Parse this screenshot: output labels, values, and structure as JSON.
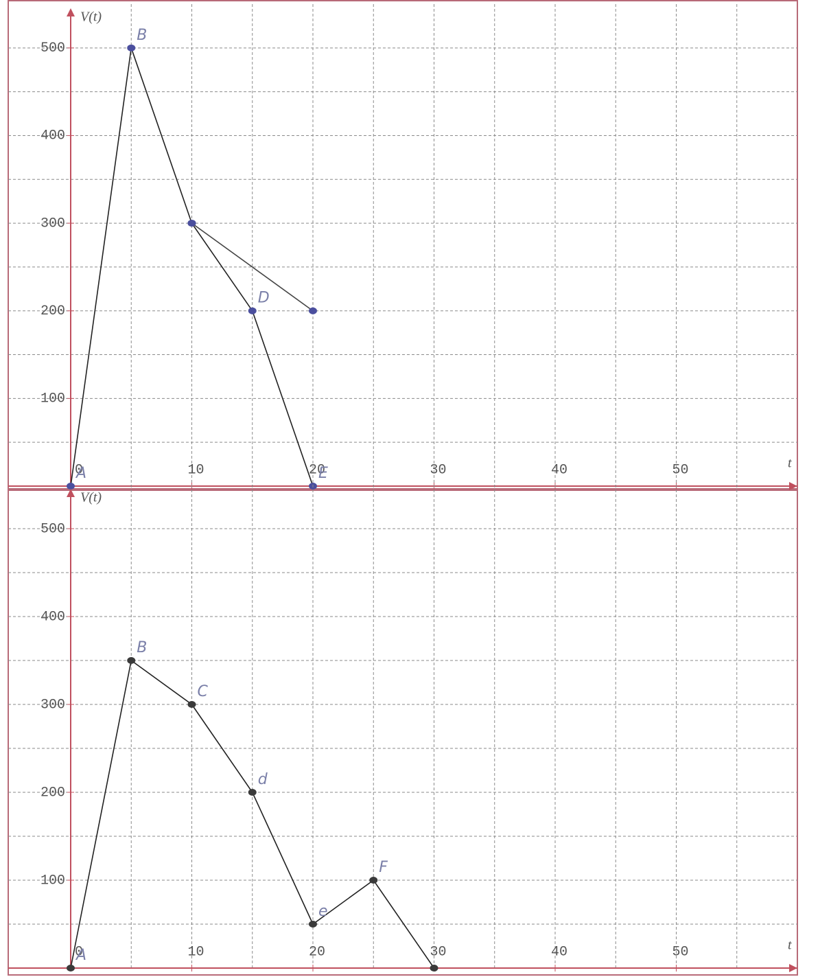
{
  "chart_data": [
    {
      "type": "line",
      "y_label": "V(t)",
      "x_label": "t",
      "xlim": [
        0,
        60
      ],
      "ylim": [
        0,
        550
      ],
      "xticks": [
        0,
        10,
        20,
        30,
        40,
        50
      ],
      "yticks": [
        100,
        200,
        300,
        400,
        500
      ],
      "xgrid": [
        5,
        10,
        15,
        20,
        25,
        30,
        35,
        40,
        45,
        50,
        55
      ],
      "ygrid": [
        50,
        100,
        150,
        200,
        250,
        300,
        350,
        400,
        450,
        500
      ],
      "grid": true,
      "series": [
        {
          "x": [
            0,
            5,
            10,
            15,
            20
          ],
          "values": [
            0,
            500,
            300,
            200,
            0
          ],
          "color": "#222222",
          "marker_color": "#4b4f9e",
          "point_labels": [
            "A",
            "B",
            null,
            "D",
            "E"
          ]
        },
        {
          "x": [
            10,
            20
          ],
          "values": [
            300,
            200
          ],
          "color": "#444444",
          "marker_color": "#4b4f9e",
          "point_labels": [
            null,
            null
          ]
        }
      ]
    },
    {
      "type": "line",
      "y_label": "V(t)",
      "x_label": "t",
      "xlim": [
        0,
        60
      ],
      "ylim": [
        0,
        550
      ],
      "xticks": [
        0,
        10,
        20,
        30,
        40,
        50
      ],
      "yticks": [
        100,
        200,
        300,
        400,
        500
      ],
      "xgrid": [
        5,
        10,
        15,
        20,
        25,
        30,
        35,
        40,
        45,
        50,
        55
      ],
      "ygrid": [
        50,
        100,
        150,
        200,
        250,
        300,
        350,
        400,
        450,
        500
      ],
      "grid": true,
      "series": [
        {
          "x": [
            0,
            5,
            10,
            15,
            20,
            25,
            30
          ],
          "values": [
            0,
            350,
            300,
            200,
            50,
            100,
            0
          ],
          "color": "#222222",
          "marker_color": "#3a3a3a",
          "point_labels": [
            "A",
            "B",
            "C",
            "d",
            "e",
            "F",
            null
          ]
        }
      ]
    }
  ]
}
